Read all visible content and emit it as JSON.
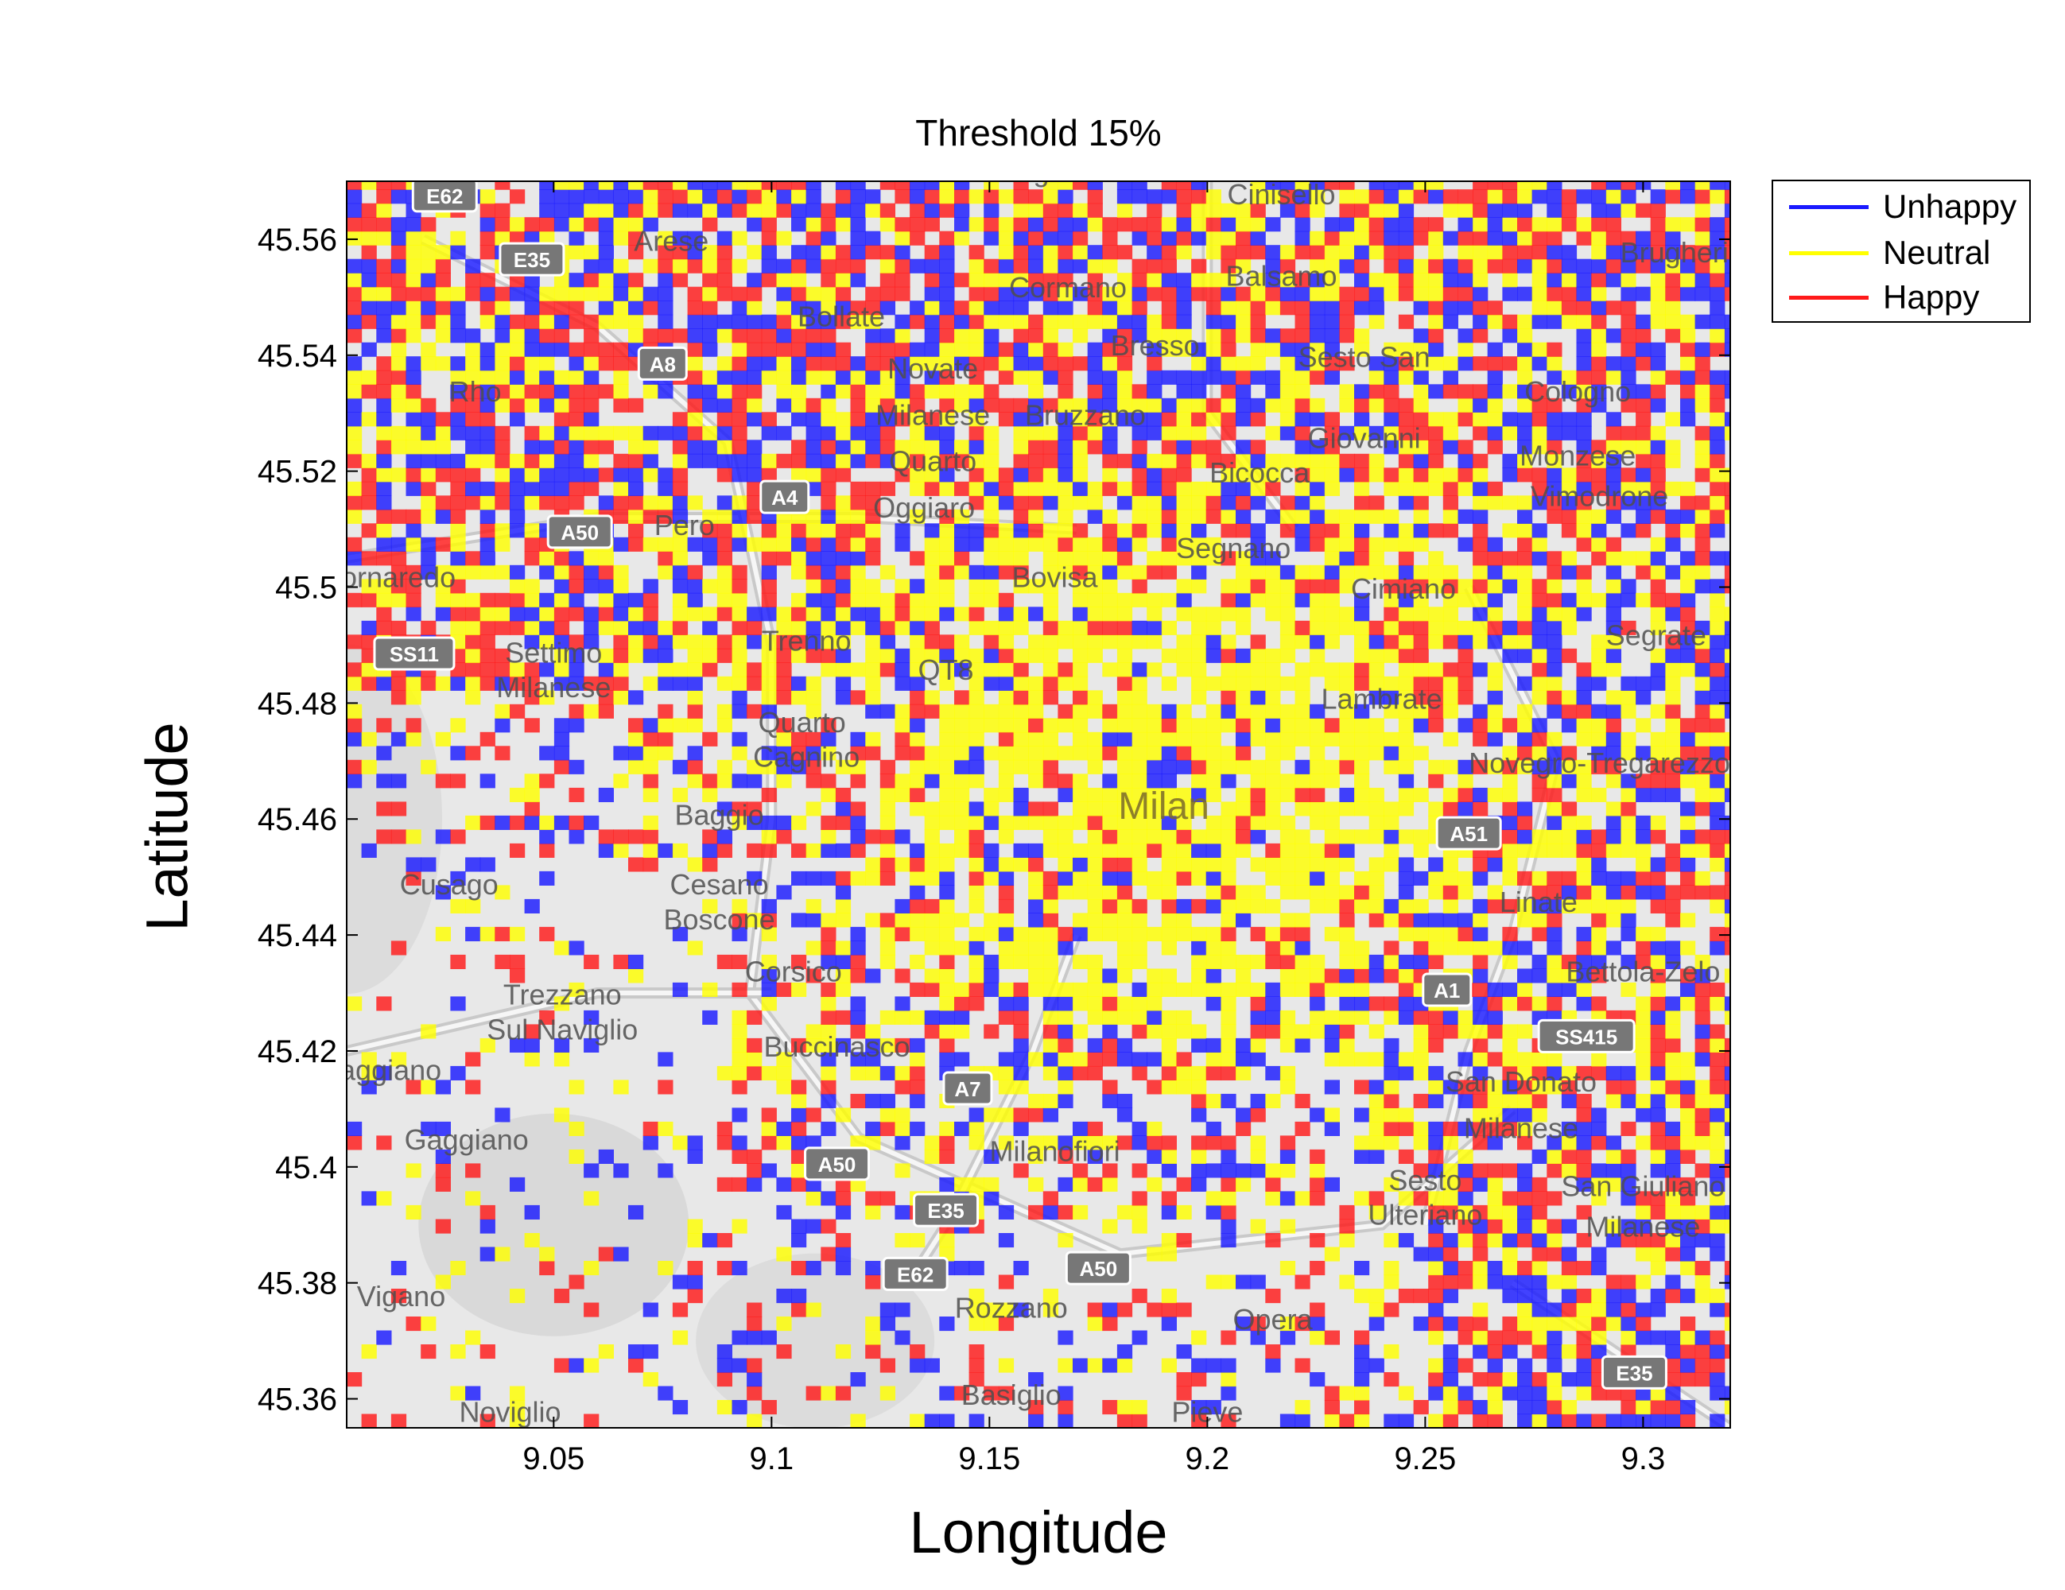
{
  "title": "Threshold 15%",
  "chart_data": {
    "type": "heatmap",
    "title": "Threshold 15%",
    "xlabel": "Longitude",
    "ylabel": "Latitude",
    "xlim": [
      9.0025,
      9.32
    ],
    "ylim": [
      45.355,
      45.57
    ],
    "x_ticks": [
      "9.05",
      "9.1",
      "9.15",
      "9.2",
      "9.25",
      "9.3"
    ],
    "y_ticks": [
      "45.36",
      "45.38",
      "45.4",
      "45.42",
      "45.44",
      "45.46",
      "45.48",
      "45.5",
      "45.52",
      "45.54",
      "45.56"
    ],
    "legend": {
      "position": "outside-top-right",
      "entries": [
        {
          "label": "Unhappy",
          "color": "#1a1aff"
        },
        {
          "label": "Neutral",
          "color": "#ffff00"
        },
        {
          "label": "Happy",
          "color": "#ff1a1a"
        }
      ]
    },
    "center": {
      "lon": 9.19,
      "lat": 45.465,
      "label": "Milan"
    },
    "grid": false
  },
  "map_labels": [
    {
      "text": "Bollate",
      "lon": 9.116,
      "lat": 45.545
    },
    {
      "text": "Rho",
      "lon": 9.032,
      "lat": 45.532
    },
    {
      "text": "Arese",
      "lon": 9.077,
      "lat": 45.558
    },
    {
      "text": "Cormano",
      "lon": 9.168,
      "lat": 45.55
    },
    {
      "text": "Cinisello",
      "lon": 9.217,
      "lat": 45.566
    },
    {
      "text": "Balsamo",
      "lon": 9.217,
      "lat": 45.552
    },
    {
      "text": "Bresso",
      "lon": 9.188,
      "lat": 45.54
    },
    {
      "text": "Sesto San",
      "lon": 9.236,
      "lat": 45.538
    },
    {
      "text": "Giovanni",
      "lon": 9.236,
      "lat": 45.524
    },
    {
      "text": "Novate",
      "lon": 9.137,
      "lat": 45.536
    },
    {
      "text": "Milanese",
      "lon": 9.137,
      "lat": 45.528
    },
    {
      "text": "Bruzzano",
      "lon": 9.172,
      "lat": 45.528
    },
    {
      "text": "Cologno",
      "lon": 9.285,
      "lat": 45.532
    },
    {
      "text": "Monzese",
      "lon": 9.285,
      "lat": 45.521
    },
    {
      "text": "Brugherio",
      "lon": 9.309,
      "lat": 45.556
    },
    {
      "text": "Quarto",
      "lon": 9.137,
      "lat": 45.52
    },
    {
      "text": "Oggiaro",
      "lon": 9.135,
      "lat": 45.512
    },
    {
      "text": "Bicocca",
      "lon": 9.212,
      "lat": 45.518
    },
    {
      "text": "Vimodrone",
      "lon": 9.29,
      "lat": 45.514
    },
    {
      "text": "Pero",
      "lon": 9.08,
      "lat": 45.509
    },
    {
      "text": "Segnano",
      "lon": 9.206,
      "lat": 45.505
    },
    {
      "text": "Bovisa",
      "lon": 9.165,
      "lat": 45.5
    },
    {
      "text": "Cimiano",
      "lon": 9.245,
      "lat": 45.498
    },
    {
      "text": "Cornaredo",
      "lon": 9.012,
      "lat": 45.5
    },
    {
      "text": "Settimo",
      "lon": 9.05,
      "lat": 45.487
    },
    {
      "text": "Milanese",
      "lon": 9.05,
      "lat": 45.481
    },
    {
      "text": "Trenno",
      "lon": 9.108,
      "lat": 45.489
    },
    {
      "text": "QT8",
      "lon": 9.14,
      "lat": 45.484
    },
    {
      "text": "Segrate",
      "lon": 9.303,
      "lat": 45.49
    },
    {
      "text": "Lambrate",
      "lon": 9.24,
      "lat": 45.479
    },
    {
      "text": "Quarto",
      "lon": 9.107,
      "lat": 45.475
    },
    {
      "text": "Cagnino",
      "lon": 9.108,
      "lat": 45.469
    },
    {
      "text": "Milan",
      "lon": 9.19,
      "lat": 45.46
    },
    {
      "text": "Novegro-Tregarezzo",
      "lon": 9.29,
      "lat": 45.468
    },
    {
      "text": "Baggio",
      "lon": 9.088,
      "lat": 45.459
    },
    {
      "text": "Cusago",
      "lon": 9.026,
      "lat": 45.447
    },
    {
      "text": "Cesano",
      "lon": 9.088,
      "lat": 45.447
    },
    {
      "text": "Boscone",
      "lon": 9.088,
      "lat": 45.441
    },
    {
      "text": "Linate",
      "lon": 9.276,
      "lat": 45.444
    },
    {
      "text": "Corsico",
      "lon": 9.105,
      "lat": 45.432
    },
    {
      "text": "Bettola-Zelo",
      "lon": 9.3,
      "lat": 45.432
    },
    {
      "text": "Trezzano",
      "lon": 9.052,
      "lat": 45.428
    },
    {
      "text": "Sul Naviglio",
      "lon": 9.052,
      "lat": 45.422
    },
    {
      "text": "Buccinasco",
      "lon": 9.115,
      "lat": 45.419
    },
    {
      "text": "San Donato",
      "lon": 9.272,
      "lat": 45.413
    },
    {
      "text": "Milanese",
      "lon": 9.272,
      "lat": 45.405
    },
    {
      "text": "Gaggiano",
      "lon": 9.03,
      "lat": 45.403
    },
    {
      "text": "Gaggiano",
      "lon": 9.01,
      "lat": 45.415
    },
    {
      "text": "Milanofiori",
      "lon": 9.165,
      "lat": 45.401
    },
    {
      "text": "Sesto",
      "lon": 9.25,
      "lat": 45.396
    },
    {
      "text": "Ulteriano",
      "lon": 9.25,
      "lat": 45.39
    },
    {
      "text": "San Giuliano",
      "lon": 9.3,
      "lat": 45.395
    },
    {
      "text": "Milanese",
      "lon": 9.3,
      "lat": 45.388
    },
    {
      "text": "Vigano",
      "lon": 9.015,
      "lat": 45.376
    },
    {
      "text": "Rozzano",
      "lon": 9.155,
      "lat": 45.374
    },
    {
      "text": "Opera",
      "lon": 9.215,
      "lat": 45.372
    },
    {
      "text": "Basiglio",
      "lon": 9.155,
      "lat": 45.359
    },
    {
      "text": "Noviglio",
      "lon": 9.04,
      "lat": 45.356
    },
    {
      "text": "Pieve",
      "lon": 9.2,
      "lat": 45.356
    },
    {
      "text": "Dugnano",
      "lon": 9.165,
      "lat": 45.57
    }
  ],
  "road_shields": [
    {
      "text": "A8",
      "lon": 9.075,
      "lat": 45.538
    },
    {
      "text": "A4",
      "lon": 9.103,
      "lat": 45.515
    },
    {
      "text": "A50",
      "lon": 9.056,
      "lat": 45.509
    },
    {
      "text": "SS11",
      "lon": 9.018,
      "lat": 45.488
    },
    {
      "text": "A51",
      "lon": 9.26,
      "lat": 45.457
    },
    {
      "text": "A1",
      "lon": 9.255,
      "lat": 45.43
    },
    {
      "text": "SS415",
      "lon": 9.287,
      "lat": 45.422
    },
    {
      "text": "A7",
      "lon": 9.145,
      "lat": 45.413
    },
    {
      "text": "A50",
      "lon": 9.115,
      "lat": 45.4
    },
    {
      "text": "E35",
      "lon": 9.14,
      "lat": 45.392
    },
    {
      "text": "E62",
      "lon": 9.133,
      "lat": 45.381
    },
    {
      "text": "A50",
      "lon": 9.175,
      "lat": 45.382
    },
    {
      "text": "E35",
      "lon": 9.298,
      "lat": 45.364
    },
    {
      "text": "E62",
      "lon": 9.025,
      "lat": 45.567
    },
    {
      "text": "E35",
      "lon": 9.045,
      "lat": 45.556
    }
  ]
}
